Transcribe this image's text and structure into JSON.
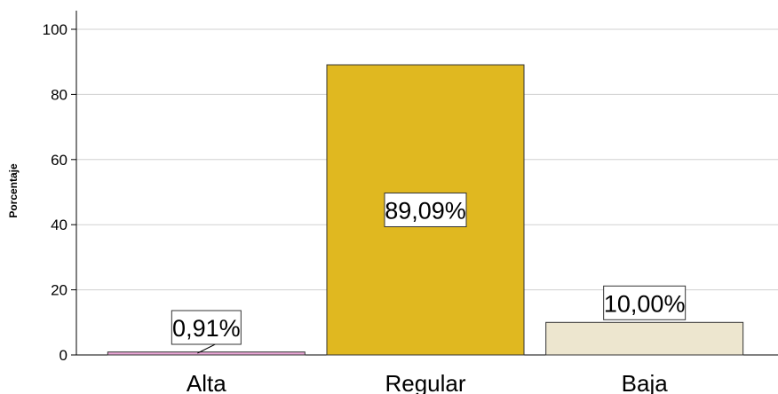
{
  "chart_data": {
    "type": "bar",
    "title": "",
    "xlabel": "",
    "ylabel": "Porcentaje",
    "ylim": [
      0,
      100
    ],
    "yticks": [
      0,
      20,
      40,
      60,
      80,
      100
    ],
    "grid": true,
    "categories": [
      "Alta",
      "Regular",
      "Baja"
    ],
    "values": [
      0.91,
      89.09,
      10.0
    ],
    "data_labels": [
      "0,91%",
      "89,09%",
      "10,00%"
    ],
    "colors": [
      "#e9a7d6",
      "#e0b820",
      "#ede6cf"
    ]
  }
}
